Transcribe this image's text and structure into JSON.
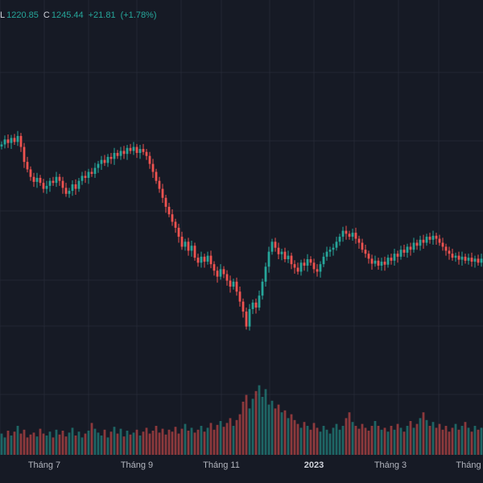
{
  "ohlc_readout": {
    "low_key": "L",
    "low_value": "1220.85",
    "close_key": "C",
    "close_value": "1245.44",
    "change": "+21.81",
    "change_pct": "(+1.78%)"
  },
  "colors": {
    "background": "#161a25",
    "grid": "#232734",
    "up": "#26a69a",
    "down": "#ef5350"
  },
  "chart_data": {
    "type": "candlestick",
    "grid": true,
    "ylim": [
      850,
      1560
    ],
    "x_tick_labels": [
      "Tháng 7",
      "Tháng 9",
      "Tháng 11",
      "2023",
      "Tháng 3",
      "Tháng"
    ],
    "close_series": [
      1335,
      1345,
      1338,
      1348,
      1340,
      1352,
      1330,
      1300,
      1285,
      1270,
      1260,
      1268,
      1258,
      1246,
      1252,
      1262,
      1258,
      1270,
      1262,
      1248,
      1236,
      1242,
      1255,
      1246,
      1262,
      1272,
      1268,
      1280,
      1276,
      1288,
      1296,
      1304,
      1298,
      1310,
      1306,
      1318,
      1312,
      1322,
      1316,
      1328,
      1322,
      1330,
      1318,
      1326,
      1320,
      1312,
      1296,
      1280,
      1262,
      1246,
      1228,
      1210,
      1195,
      1180,
      1168,
      1150,
      1130,
      1140,
      1122,
      1132,
      1108,
      1098,
      1110,
      1100,
      1112,
      1095,
      1082,
      1070,
      1085,
      1075,
      1062,
      1050,
      1060,
      1040,
      1020,
      1000,
      970,
      1005,
      1018,
      1008,
      1032,
      1060,
      1090,
      1120,
      1140,
      1128,
      1115,
      1120,
      1105,
      1112,
      1095,
      1088,
      1080,
      1098,
      1092,
      1105,
      1098,
      1085,
      1080,
      1095,
      1110,
      1120,
      1124,
      1128,
      1140,
      1150,
      1162,
      1156,
      1150,
      1158,
      1146,
      1138,
      1124,
      1116,
      1106,
      1096,
      1102,
      1092,
      1100,
      1094,
      1108,
      1102,
      1116,
      1110,
      1124,
      1118,
      1130,
      1124,
      1138,
      1132,
      1144,
      1138,
      1150,
      1144,
      1152,
      1146,
      1138,
      1130,
      1122,
      1116,
      1108,
      1112,
      1104,
      1110,
      1102,
      1108,
      1100,
      1106,
      1098,
      1106
    ],
    "volume": [
      0.22,
      0.18,
      0.25,
      0.2,
      0.24,
      0.3,
      0.22,
      0.26,
      0.18,
      0.21,
      0.23,
      0.19,
      0.27,
      0.22,
      0.2,
      0.24,
      0.18,
      0.26,
      0.21,
      0.25,
      0.19,
      0.23,
      0.28,
      0.2,
      0.24,
      0.18,
      0.22,
      0.25,
      0.33,
      0.27,
      0.23,
      0.2,
      0.26,
      0.18,
      0.24,
      0.29,
      0.22,
      0.27,
      0.19,
      0.25,
      0.21,
      0.23,
      0.26,
      0.2,
      0.24,
      0.28,
      0.22,
      0.25,
      0.3,
      0.23,
      0.27,
      0.21,
      0.26,
      0.24,
      0.29,
      0.22,
      0.27,
      0.32,
      0.25,
      0.28,
      0.23,
      0.26,
      0.3,
      0.24,
      0.28,
      0.33,
      0.26,
      0.31,
      0.35,
      0.29,
      0.33,
      0.38,
      0.3,
      0.36,
      0.42,
      0.55,
      0.62,
      0.48,
      0.58,
      0.66,
      0.72,
      0.6,
      0.68,
      0.52,
      0.56,
      0.48,
      0.52,
      0.44,
      0.46,
      0.38,
      0.42,
      0.36,
      0.32,
      0.28,
      0.34,
      0.3,
      0.26,
      0.33,
      0.28,
      0.24,
      0.3,
      0.26,
      0.22,
      0.28,
      0.32,
      0.26,
      0.3,
      0.38,
      0.44,
      0.34,
      0.3,
      0.27,
      0.32,
      0.28,
      0.25,
      0.3,
      0.35,
      0.3,
      0.26,
      0.28,
      0.24,
      0.3,
      0.26,
      0.32,
      0.28,
      0.24,
      0.3,
      0.35,
      0.28,
      0.32,
      0.38,
      0.44,
      0.36,
      0.3,
      0.34,
      0.28,
      0.32,
      0.26,
      0.3,
      0.24,
      0.28,
      0.32,
      0.26,
      0.3,
      0.34,
      0.28,
      0.24,
      0.3,
      0.26,
      0.28
    ]
  }
}
